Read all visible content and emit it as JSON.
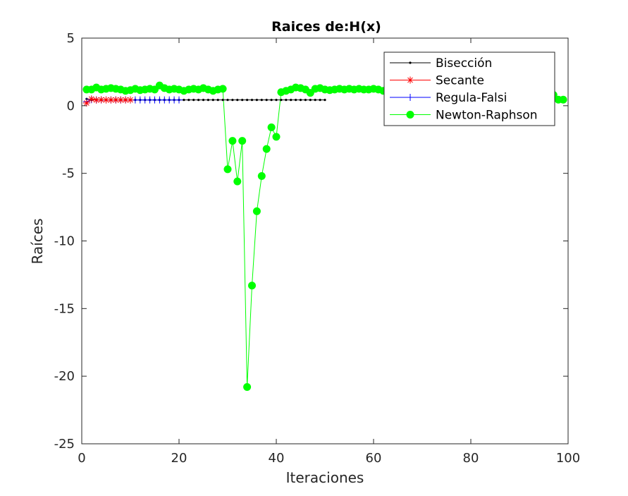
{
  "chart_data": {
    "type": "line",
    "title": "Raices de:H(x)",
    "xlabel": "Iteraciones",
    "ylabel": "Raíces",
    "xlim": [
      0,
      100
    ],
    "ylim": [
      -25,
      5
    ],
    "xticks": [
      0,
      20,
      40,
      60,
      80,
      100
    ],
    "yticks": [
      5,
      0,
      -5,
      -10,
      -15,
      -20,
      -25
    ],
    "grid": false,
    "legend_position": "top-right",
    "series": [
      {
        "name": "Bisección",
        "color": "#000000",
        "marker": "dot",
        "x": [
          1,
          2,
          3,
          4,
          5,
          6,
          7,
          8,
          9,
          10,
          11,
          12,
          13,
          14,
          15,
          16,
          17,
          18,
          19,
          20,
          21,
          22,
          23,
          24,
          25,
          26,
          27,
          28,
          29,
          30,
          31,
          32,
          33,
          34,
          35,
          36,
          37,
          38,
          39,
          40,
          41,
          42,
          43,
          44,
          45,
          46,
          47,
          48,
          49,
          50
        ],
        "y": [
          0.5,
          0.42,
          0.44,
          0.43,
          0.43,
          0.43,
          0.43,
          0.43,
          0.43,
          0.43,
          0.43,
          0.43,
          0.43,
          0.43,
          0.43,
          0.43,
          0.43,
          0.43,
          0.43,
          0.43,
          0.43,
          0.43,
          0.43,
          0.43,
          0.43,
          0.43,
          0.43,
          0.43,
          0.43,
          0.43,
          0.43,
          0.43,
          0.43,
          0.43,
          0.43,
          0.43,
          0.43,
          0.43,
          0.43,
          0.43,
          0.43,
          0.43,
          0.43,
          0.43,
          0.43,
          0.43,
          0.43,
          0.43,
          0.43,
          0.43
        ]
      },
      {
        "name": "Secante",
        "color": "#ff0000",
        "marker": "asterisk",
        "x": [
          1,
          2,
          3,
          4,
          5,
          6,
          7,
          8,
          9,
          10
        ],
        "y": [
          0.2,
          0.5,
          0.42,
          0.44,
          0.43,
          0.43,
          0.43,
          0.43,
          0.43,
          0.43
        ]
      },
      {
        "name": "Regula-Falsi",
        "color": "#0000ff",
        "marker": "plus",
        "x": [
          1,
          2,
          3,
          4,
          5,
          6,
          7,
          8,
          9,
          10,
          11,
          12,
          13,
          14,
          15,
          16,
          17,
          18,
          19,
          20
        ],
        "y": [
          0.3,
          0.45,
          0.43,
          0.43,
          0.43,
          0.43,
          0.43,
          0.43,
          0.43,
          0.43,
          0.43,
          0.43,
          0.43,
          0.43,
          0.43,
          0.43,
          0.43,
          0.43,
          0.43,
          0.43
        ]
      },
      {
        "name": "Newton-Raphson",
        "color": "#00ff00",
        "marker": "circle",
        "x": [
          1,
          2,
          3,
          4,
          5,
          6,
          7,
          8,
          9,
          10,
          11,
          12,
          13,
          14,
          15,
          16,
          17,
          18,
          19,
          20,
          21,
          22,
          23,
          24,
          25,
          26,
          27,
          28,
          29,
          30,
          31,
          32,
          33,
          34,
          35,
          36,
          37,
          38,
          39,
          40,
          41,
          42,
          43,
          44,
          45,
          46,
          47,
          48,
          49,
          50,
          51,
          52,
          53,
          54,
          55,
          56,
          57,
          58,
          59,
          60,
          61,
          62,
          63,
          64,
          65,
          66,
          67,
          68,
          69,
          70,
          71,
          72,
          73,
          74,
          75,
          76,
          77,
          78,
          79,
          80,
          81,
          82,
          83,
          84,
          85,
          86,
          87,
          88,
          89,
          90,
          91,
          92,
          93,
          94,
          95,
          96,
          97,
          98,
          99
        ],
        "y": [
          1.2,
          1.2,
          1.35,
          1.2,
          1.25,
          1.3,
          1.25,
          1.2,
          1.1,
          1.15,
          1.25,
          1.15,
          1.2,
          1.25,
          1.2,
          1.5,
          1.3,
          1.2,
          1.25,
          1.2,
          1.1,
          1.2,
          1.25,
          1.2,
          1.3,
          1.2,
          1.1,
          1.2,
          1.25,
          -4.7,
          -2.6,
          -5.6,
          -2.6,
          -20.8,
          -13.3,
          -7.8,
          -5.2,
          -3.2,
          -1.6,
          -2.3,
          1.0,
          1.1,
          1.2,
          1.35,
          1.3,
          1.2,
          0.95,
          1.25,
          1.3,
          1.2,
          1.15,
          1.2,
          1.25,
          1.2,
          1.25,
          1.2,
          1.25,
          1.2,
          1.2,
          1.25,
          1.2,
          1.1,
          1.2,
          1.25,
          1.2,
          1.15,
          1.2,
          1.25,
          1.2,
          1.2,
          1.25,
          1.2,
          1.15,
          1.2,
          1.25,
          1.2,
          1.2,
          1.25,
          1.2,
          1.15,
          1.2,
          1.25,
          1.2,
          1.2,
          1.25,
          1.2,
          1.15,
          1.2,
          1.25,
          1.2,
          1.2,
          1.25,
          1.2,
          1.15,
          1.1,
          1.0,
          0.8,
          0.45,
          0.45
        ]
      }
    ]
  }
}
